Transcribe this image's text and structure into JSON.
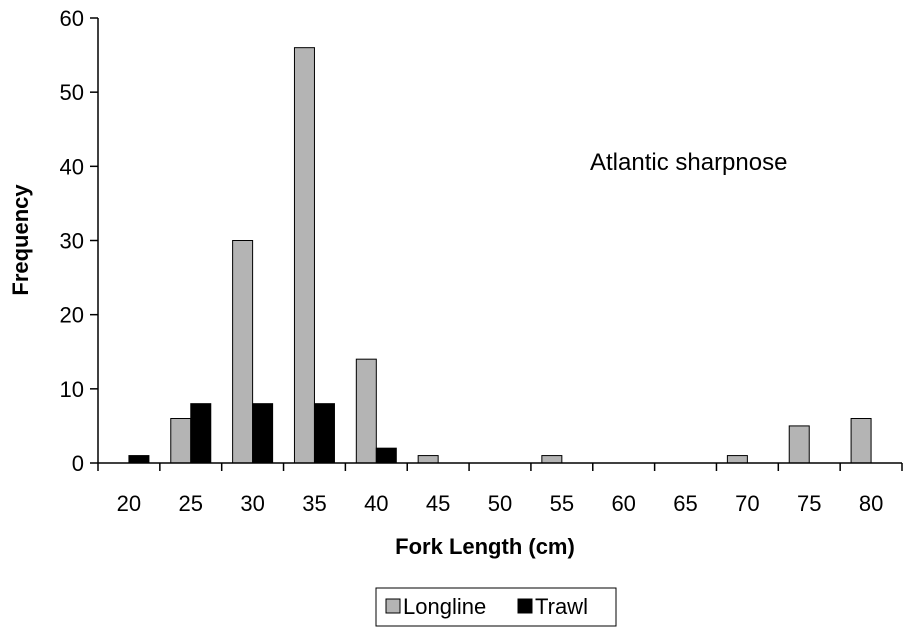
{
  "chart_data": {
    "type": "bar",
    "xlabel": "Fork Length (cm)",
    "ylabel": "Frequency",
    "annotation": "Atlantic sharpnose",
    "categories": [
      "20",
      "25",
      "30",
      "35",
      "40",
      "45",
      "50",
      "55",
      "60",
      "65",
      "70",
      "75",
      "80"
    ],
    "series": [
      {
        "name": "Longline",
        "color": "#b4b4b4",
        "values": [
          0,
          6,
          30,
          56,
          14,
          1,
          0,
          1,
          0,
          0,
          1,
          5,
          6
        ]
      },
      {
        "name": "Trawl",
        "color": "#000000",
        "values": [
          1,
          8,
          8,
          8,
          2,
          0,
          0,
          0,
          0,
          0,
          0,
          0,
          0
        ]
      }
    ],
    "yticks": [
      0,
      10,
      20,
      30,
      40,
      50,
      60
    ],
    "ylim": [
      0,
      60
    ],
    "grid": false,
    "legend_position": "bottom"
  }
}
